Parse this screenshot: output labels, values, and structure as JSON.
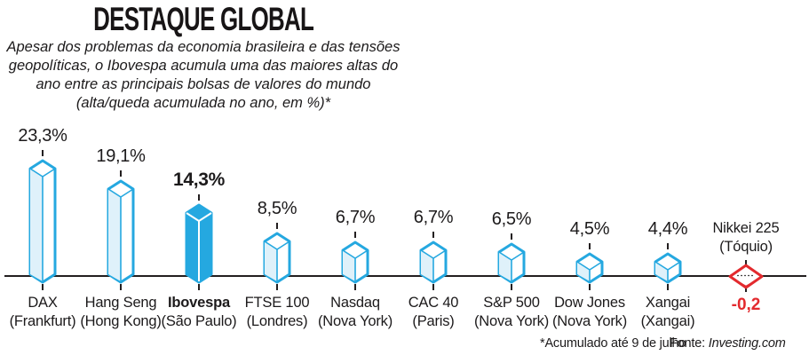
{
  "header": {
    "title": "DESTAQUE GLOBAL",
    "subtitle_lines": [
      "Apesar dos problemas da economia brasileira e das tensões",
      "geopolíticas, o Ibovespa acumula uma das maiores altas do",
      "ano entre as principais bolsas de valores do mundo",
      "(alta/queda acumulada no ano, em %)*"
    ]
  },
  "chart_data": {
    "type": "bar",
    "title": "DESTAQUE GLOBAL",
    "subtitle": "Apesar dos problemas da economia brasileira e das tensões geopolíticas, o Ibovespa acumula uma das maiores altas do ano entre as principais bolsas de valores do mundo (alta/queda acumulada no ano, em %)*",
    "unit": "%",
    "ylim": [
      -1,
      25
    ],
    "grid": false,
    "bars": [
      {
        "name": "DAX",
        "city": "(Frankfurt)",
        "value": 23.3,
        "value_label": "23,3%",
        "highlight": false
      },
      {
        "name": "Hang Seng",
        "city": "(Hong Kong)",
        "value": 19.1,
        "value_label": "19,1%",
        "highlight": false
      },
      {
        "name": "Ibovespa",
        "city": "(São Paulo)",
        "value": 14.3,
        "value_label": "14,3%",
        "highlight": true
      },
      {
        "name": "FTSE 100",
        "city": "(Londres)",
        "value": 8.5,
        "value_label": "8,5%",
        "highlight": false
      },
      {
        "name": "Nasdaq",
        "city": "(Nova York)",
        "value": 6.7,
        "value_label": "6,7%",
        "highlight": false
      },
      {
        "name": "CAC 40",
        "city": "(Paris)",
        "value": 6.7,
        "value_label": "6,7%",
        "highlight": false
      },
      {
        "name": "S&P 500",
        "city": "(Nova York)",
        "value": 6.5,
        "value_label": "6,5%",
        "highlight": false
      },
      {
        "name": "Dow Jones",
        "city": "(Nova York)",
        "value": 4.5,
        "value_label": "4,5%",
        "highlight": false
      },
      {
        "name": "Xangai",
        "city": "(Xangai)",
        "value": 4.4,
        "value_label": "4,4%",
        "highlight": false
      }
    ],
    "negative_marker": {
      "name": "Nikkei 225",
      "city": "(Tóquio)",
      "value": -0.2,
      "value_label": "-0,2"
    },
    "colors": {
      "accent": "#25a8e0",
      "light_face": "#dff1fa",
      "white": "#ffffff",
      "negative": "#e32a2e",
      "axis": "#231f20",
      "text": "#1c1a1b"
    }
  },
  "footer": {
    "footnote": "*Acumulado até 9 de julho",
    "source_label": "Fonte: ",
    "source_name": "Investing.com"
  }
}
